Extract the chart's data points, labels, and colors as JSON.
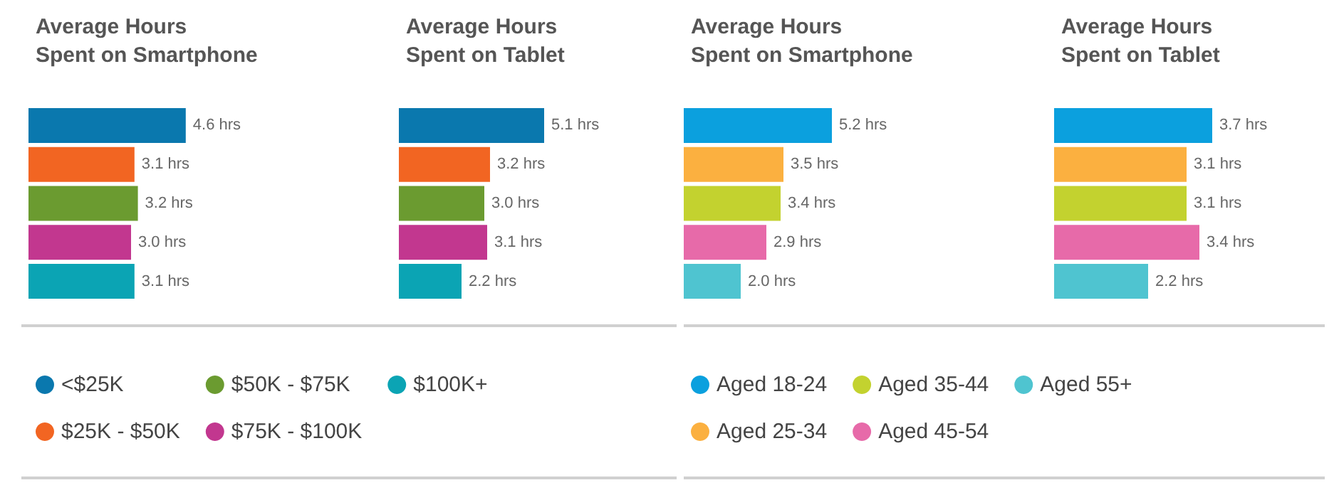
{
  "chart_data": [
    {
      "type": "bar",
      "orientation": "horizontal",
      "title": "Average Hours\nSpent on Smartphone",
      "categories": [
        null
      ],
      "legend": "bottom",
      "series": [
        {
          "name": "<$25K",
          "color": "#0a78ae",
          "values": [
            4.6
          ],
          "value_labels": [
            "4.6 hrs"
          ]
        },
        {
          "name": "$25K - $50K",
          "color": "#f26522",
          "values": [
            3.1
          ],
          "value_labels": [
            "3.1 hrs"
          ]
        },
        {
          "name": "$50K - $75K",
          "color": "#6b9b30",
          "values": [
            3.2
          ],
          "value_labels": [
            "3.2 hrs"
          ]
        },
        {
          "name": "$75K - $100K",
          "color": "#c2378f",
          "values": [
            3.0
          ],
          "value_labels": [
            "3.0 hrs"
          ]
        },
        {
          "name": "$100K+",
          "color": "#0ba4b4",
          "values": [
            3.1
          ],
          "value_labels": [
            "3.1 hrs"
          ]
        }
      ]
    },
    {
      "type": "bar",
      "orientation": "horizontal",
      "title": "Average Hours\nSpent on Tablet",
      "categories": [
        null
      ],
      "series": [
        {
          "color": "#0a78ae",
          "values": [
            5.1
          ],
          "value_labels": [
            "5.1 hrs"
          ]
        },
        {
          "color": "#f26522",
          "values": [
            3.2
          ],
          "value_labels": [
            "3.2 hrs"
          ]
        },
        {
          "color": "#6b9b30",
          "values": [
            3.0
          ],
          "value_labels": [
            "3.0 hrs"
          ]
        },
        {
          "color": "#c2378f",
          "values": [
            3.1
          ],
          "value_labels": [
            "3.1 hrs"
          ]
        },
        {
          "color": "#0ba4b4",
          "values": [
            2.2
          ],
          "value_labels": [
            "2.2 hrs"
          ]
        }
      ]
    },
    {
      "type": "bar",
      "orientation": "horizontal",
      "title": "Average Hours\nSpent on Smartphone",
      "categories": [
        null
      ],
      "legend": "bottom",
      "series": [
        {
          "name": "Aged 18-24",
          "color": "#0ba0de",
          "values": [
            5.2
          ],
          "value_labels": [
            "5.2 hrs"
          ]
        },
        {
          "name": "Aged 25-34",
          "color": "#fbb040",
          "values": [
            3.5
          ],
          "value_labels": [
            "3.5 hrs"
          ]
        },
        {
          "name": "Aged 35-44",
          "color": "#c3d22f",
          "values": [
            3.4
          ],
          "value_labels": [
            "3.4 hrs"
          ]
        },
        {
          "name": "Aged 45-54",
          "color": "#e76aa9",
          "values": [
            2.9
          ],
          "value_labels": [
            "2.9 hrs"
          ]
        },
        {
          "name": "Aged 55+",
          "color": "#4fc4d0",
          "values": [
            2.0
          ],
          "value_labels": [
            "2.0 hrs"
          ]
        }
      ]
    },
    {
      "type": "bar",
      "orientation": "horizontal",
      "title": "Average Hours\nSpent on Tablet",
      "categories": [
        null
      ],
      "series": [
        {
          "color": "#0ba0de",
          "values": [
            3.7
          ],
          "value_labels": [
            "3.7 hrs"
          ]
        },
        {
          "color": "#fbb040",
          "values": [
            3.1
          ],
          "value_labels": [
            "3.1 hrs"
          ]
        },
        {
          "color": "#c3d22f",
          "values": [
            3.1
          ],
          "value_labels": [
            "3.1 hrs"
          ]
        },
        {
          "color": "#e76aa9",
          "values": [
            3.4
          ],
          "value_labels": [
            "3.4 hrs"
          ]
        },
        {
          "color": "#4fc4d0",
          "values": [
            2.2
          ],
          "value_labels": [
            "2.2 hrs"
          ]
        }
      ]
    }
  ]
}
